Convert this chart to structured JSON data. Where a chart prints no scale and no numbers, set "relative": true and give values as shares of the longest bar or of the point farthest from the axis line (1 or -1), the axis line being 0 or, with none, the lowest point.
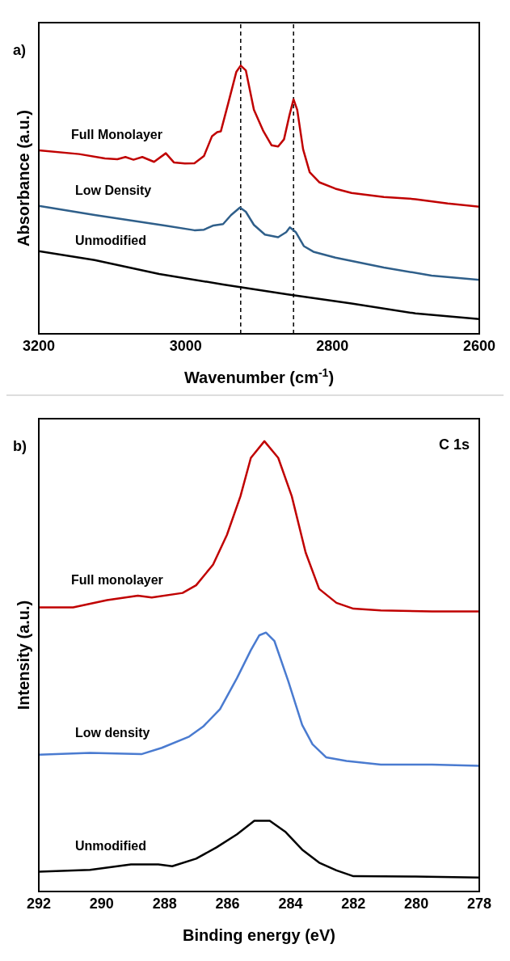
{
  "chart_data": [
    {
      "type": "line",
      "relative": true,
      "xlabel": "Wavenumber (cm$^{-1}$)",
      "ylabel": "Absorbance (a.u.)",
      "annotations": [
        "a)"
      ],
      "xlim": [
        3200,
        2600
      ],
      "xticks": [
        3200,
        3000,
        2800,
        2600
      ],
      "grid": false,
      "legend": false,
      "marker": "none",
      "line_style": "solid",
      "ref_lines": [
        {
          "axis": "x",
          "value": 2925,
          "color": "#000000",
          "line_style": "dashed"
        },
        {
          "axis": "x",
          "value": 2853,
          "color": "#000000",
          "line_style": "dashed"
        }
      ],
      "series": [
        {
          "name": "Full Monolayer",
          "color": "#c00000",
          "x": [
            3200,
            3145,
            3110,
            3093,
            3082,
            3071,
            3059,
            3043,
            3027,
            3016,
            3001,
            2988,
            2975,
            2964,
            2957,
            2952,
            2942,
            2931,
            2925,
            2918,
            2907,
            2894,
            2883,
            2874,
            2866,
            2859,
            2853,
            2848,
            2840,
            2831,
            2818,
            2796,
            2774,
            2730,
            2687,
            2643,
            2600
          ],
          "values": [
            0.684,
            0.67,
            0.654,
            0.651,
            0.659,
            0.649,
            0.659,
            0.641,
            0.673,
            0.639,
            0.635,
            0.636,
            0.663,
            0.737,
            0.752,
            0.755,
            0.859,
            0.976,
            1.0,
            0.982,
            0.835,
            0.755,
            0.703,
            0.698,
            0.725,
            0.81,
            0.874,
            0.835,
            0.688,
            0.602,
            0.565,
            0.541,
            0.525,
            0.51,
            0.502,
            0.486,
            0.474
          ]
        },
        {
          "name": "Low Density",
          "color": "#2f5f8a",
          "x": [
            3200,
            3124,
            3027,
            2988,
            2975,
            2962,
            2949,
            2938,
            2926,
            2918,
            2907,
            2892,
            2874,
            2863,
            2858,
            2850,
            2839,
            2826,
            2796,
            2730,
            2665,
            2600
          ],
          "values": [
            0.477,
            0.443,
            0.403,
            0.386,
            0.388,
            0.404,
            0.409,
            0.443,
            0.471,
            0.455,
            0.406,
            0.37,
            0.36,
            0.379,
            0.397,
            0.379,
            0.327,
            0.306,
            0.284,
            0.247,
            0.217,
            0.201
          ]
        },
        {
          "name": "Unmodified",
          "color": "#000000",
          "x": [
            3200,
            3124,
            3036,
            2949,
            2861,
            2774,
            2687,
            2600
          ],
          "values": [
            0.308,
            0.275,
            0.223,
            0.184,
            0.147,
            0.113,
            0.076,
            0.055
          ]
        }
      ]
    },
    {
      "type": "line",
      "relative": true,
      "xlabel": "Binding energy (eV)",
      "ylabel": "Intensity (a.u.)",
      "annotations": [
        "b)",
        "C 1s"
      ],
      "xlim": [
        292,
        278
      ],
      "xticks": [
        292,
        290,
        288,
        286,
        284,
        282,
        280,
        278
      ],
      "grid": false,
      "legend": false,
      "marker": "none",
      "line_style": "solid",
      "series": [
        {
          "name": "Full monolayer",
          "color": "#c00000",
          "x": [
            292,
            290.91,
            289.83,
            288.85,
            288.41,
            287.43,
            287.0,
            286.46,
            286.02,
            285.59,
            285.26,
            284.83,
            284.39,
            283.96,
            283.52,
            283.09,
            282.54,
            282.0,
            281.13,
            279.5,
            278
          ],
          "values": [
            0.631,
            0.631,
            0.647,
            0.657,
            0.653,
            0.663,
            0.68,
            0.726,
            0.792,
            0.878,
            0.963,
            1.0,
            0.963,
            0.878,
            0.753,
            0.672,
            0.641,
            0.628,
            0.624,
            0.622,
            0.622
          ]
        },
        {
          "name": "Low density",
          "color": "#4a7bd0",
          "x": [
            292,
            290.37,
            288.74,
            288.09,
            287.22,
            286.78,
            286.24,
            285.7,
            285.26,
            284.99,
            284.78,
            284.51,
            284.07,
            283.63,
            283.3,
            282.87,
            282.22,
            281.13,
            279.5,
            278
          ],
          "values": [
            0.304,
            0.308,
            0.305,
            0.319,
            0.344,
            0.366,
            0.405,
            0.474,
            0.536,
            0.569,
            0.575,
            0.556,
            0.467,
            0.37,
            0.327,
            0.298,
            0.29,
            0.282,
            0.282,
            0.279
          ]
        },
        {
          "name": "Unmodified",
          "color": "#000000",
          "x": [
            292,
            290.37,
            289.07,
            288.2,
            287.76,
            287.0,
            286.35,
            285.7,
            285.15,
            284.66,
            284.17,
            283.63,
            283.09,
            282.54,
            282.0,
            280.04,
            278
          ],
          "values": [
            0.044,
            0.048,
            0.06,
            0.06,
            0.056,
            0.073,
            0.098,
            0.127,
            0.157,
            0.157,
            0.133,
            0.093,
            0.064,
            0.047,
            0.034,
            0.033,
            0.031
          ]
        }
      ]
    }
  ]
}
